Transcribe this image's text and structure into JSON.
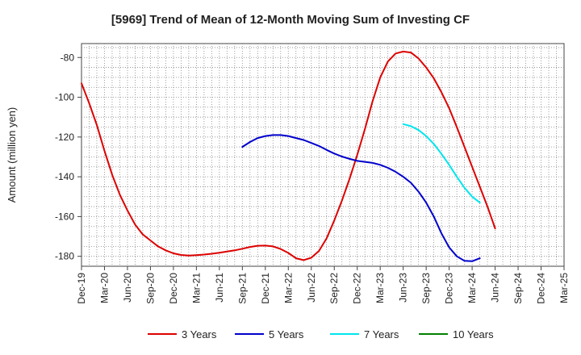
{
  "chart_data": {
    "type": "line",
    "title": "[5969]  Trend of Mean of 12-Month Moving Sum of Investing CF",
    "ylabel": "Amount (million yen)",
    "xlabel": "",
    "x_ticks": [
      "Dec-19",
      "Mar-20",
      "Jun-20",
      "Sep-20",
      "Dec-20",
      "Mar-21",
      "Jun-21",
      "Sep-21",
      "Dec-21",
      "Mar-22",
      "Jun-22",
      "Sep-22",
      "Dec-22",
      "Mar-23",
      "Jun-23",
      "Sep-23",
      "Dec-23",
      "Mar-24",
      "Jun-24",
      "Sep-24",
      "Dec-24",
      "Mar-25"
    ],
    "y_ticks": [
      -80,
      -100,
      -120,
      -140,
      -160,
      -180
    ],
    "ylim": [
      -185,
      -73
    ],
    "grid": true,
    "legend_position": "bottom",
    "series": [
      {
        "name": "3 Years",
        "color": "#dd0000",
        "start_index": 0,
        "values": [
          -93,
          -103,
          -114,
          -127,
          -139,
          -149,
          -157,
          -164,
          -169,
          -172,
          -175,
          -177,
          -178.5,
          -179.3,
          -179.6,
          -179.4,
          -179.1,
          -178.7,
          -178.2,
          -177.6,
          -177,
          -176.2,
          -175.3,
          -174.7,
          -174.6,
          -175,
          -176.3,
          -178.3,
          -181,
          -181.9,
          -180.7,
          -177.3,
          -171,
          -162,
          -152,
          -141,
          -129,
          -116,
          -102,
          -90,
          -82,
          -78,
          -77,
          -77.5,
          -80.5,
          -85,
          -90.5,
          -97.5,
          -105.5,
          -115,
          -125,
          -135,
          -145,
          -155,
          -166
        ]
      },
      {
        "name": "5 Years",
        "color": "#0000cc",
        "start_index": 21,
        "values": [
          -125,
          -122.5,
          -120.5,
          -119.5,
          -119,
          -119,
          -119.5,
          -120.5,
          -121.5,
          -123,
          -124.5,
          -126.5,
          -128.3,
          -129.8,
          -131,
          -132,
          -132.5,
          -133,
          -134,
          -135.5,
          -137.5,
          -140,
          -143,
          -147.5,
          -153,
          -160,
          -168.5,
          -175.5,
          -180,
          -182.3,
          -182.5,
          -181
        ]
      },
      {
        "name": "7 Years",
        "color": "#00e5ee",
        "start_index": 42,
        "values": [
          -113.5,
          -114.5,
          -116.5,
          -119.5,
          -123.5,
          -128.5,
          -134,
          -140,
          -145.5,
          -150,
          -153
        ]
      },
      {
        "name": "10 Years",
        "color": "#008000",
        "start_index": 0,
        "values": []
      }
    ]
  }
}
